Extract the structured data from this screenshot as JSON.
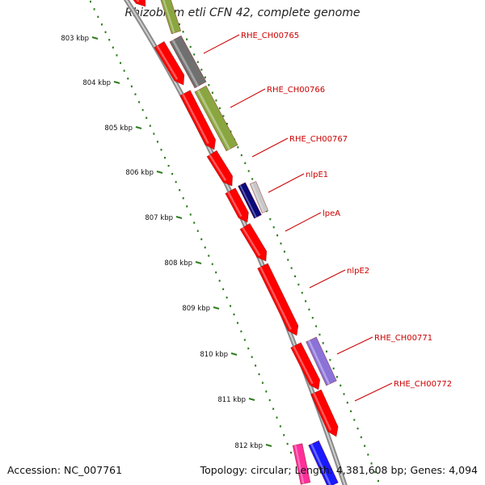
{
  "title": "Rhizobium etli CFN 42, complete genome",
  "footer": {
    "accession": "Accession: NC_007761",
    "summary": "Topology: circular; Length: 4,381,608 bp; Genes: 4,094"
  },
  "scale_labels": [
    "803 kbp",
    "804 kbp",
    "805 kbp",
    "806 kbp",
    "807 kbp",
    "808 kbp",
    "809 kbp",
    "810 kbp",
    "811 kbp",
    "812 kbp"
  ],
  "gene_labels": [
    "RHE_CH00765",
    "RHE_CH00766",
    "RHE_CH00767",
    "nlpE1",
    "lpeA",
    "nlpE2",
    "RHE_CH00771",
    "RHE_CH00772"
  ],
  "colors": {
    "cds": "#ff0000",
    "cog_olive": "#8aa640",
    "cog_gray": "#707070",
    "cog_navy": "#0a0a7a",
    "cog_lightgray": "#c8c8c8",
    "cog_violet": "#8a72d8",
    "cog_pink": "#ff2f9a",
    "cog_blue": "#1a1aff",
    "label_red": "#cc0000",
    "tick_green": "#2e7d1e"
  }
}
